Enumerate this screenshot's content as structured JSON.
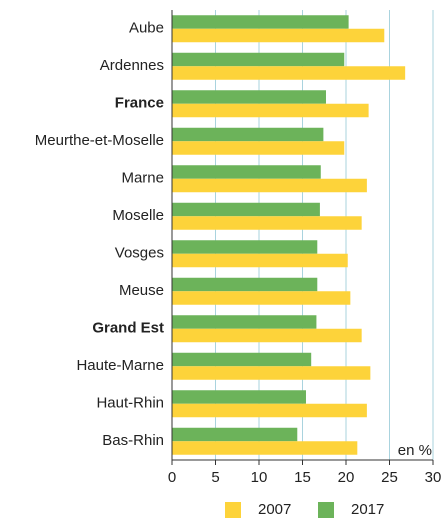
{
  "chart_data": {
    "type": "hbar",
    "categories": [
      "Aube",
      "Ardennes",
      "France",
      "Meurthe-et-Moselle",
      "Marne",
      "Moselle",
      "Vosges",
      "Meuse",
      "Grand Est",
      "Haute-Marne",
      "Haut-Rhin",
      "Bas-Rhin"
    ],
    "bold_categories": [
      2,
      8
    ],
    "series": [
      {
        "name": "2017",
        "color": "#6cb35a",
        "values": [
          20.3,
          19.8,
          17.7,
          17.4,
          17.1,
          17.0,
          16.7,
          16.7,
          16.6,
          16.0,
          15.4,
          14.4
        ]
      },
      {
        "name": "2007",
        "color": "#fdd33a",
        "values": [
          24.4,
          26.8,
          22.6,
          19.8,
          22.4,
          21.8,
          20.2,
          20.5,
          21.8,
          22.8,
          22.4,
          21.3
        ]
      }
    ],
    "legend_order": [
      1,
      0
    ],
    "xlim": [
      0,
      30
    ],
    "xticks": [
      0,
      5,
      10,
      15,
      20,
      25,
      30
    ],
    "grid": true,
    "annotation": "en %"
  }
}
